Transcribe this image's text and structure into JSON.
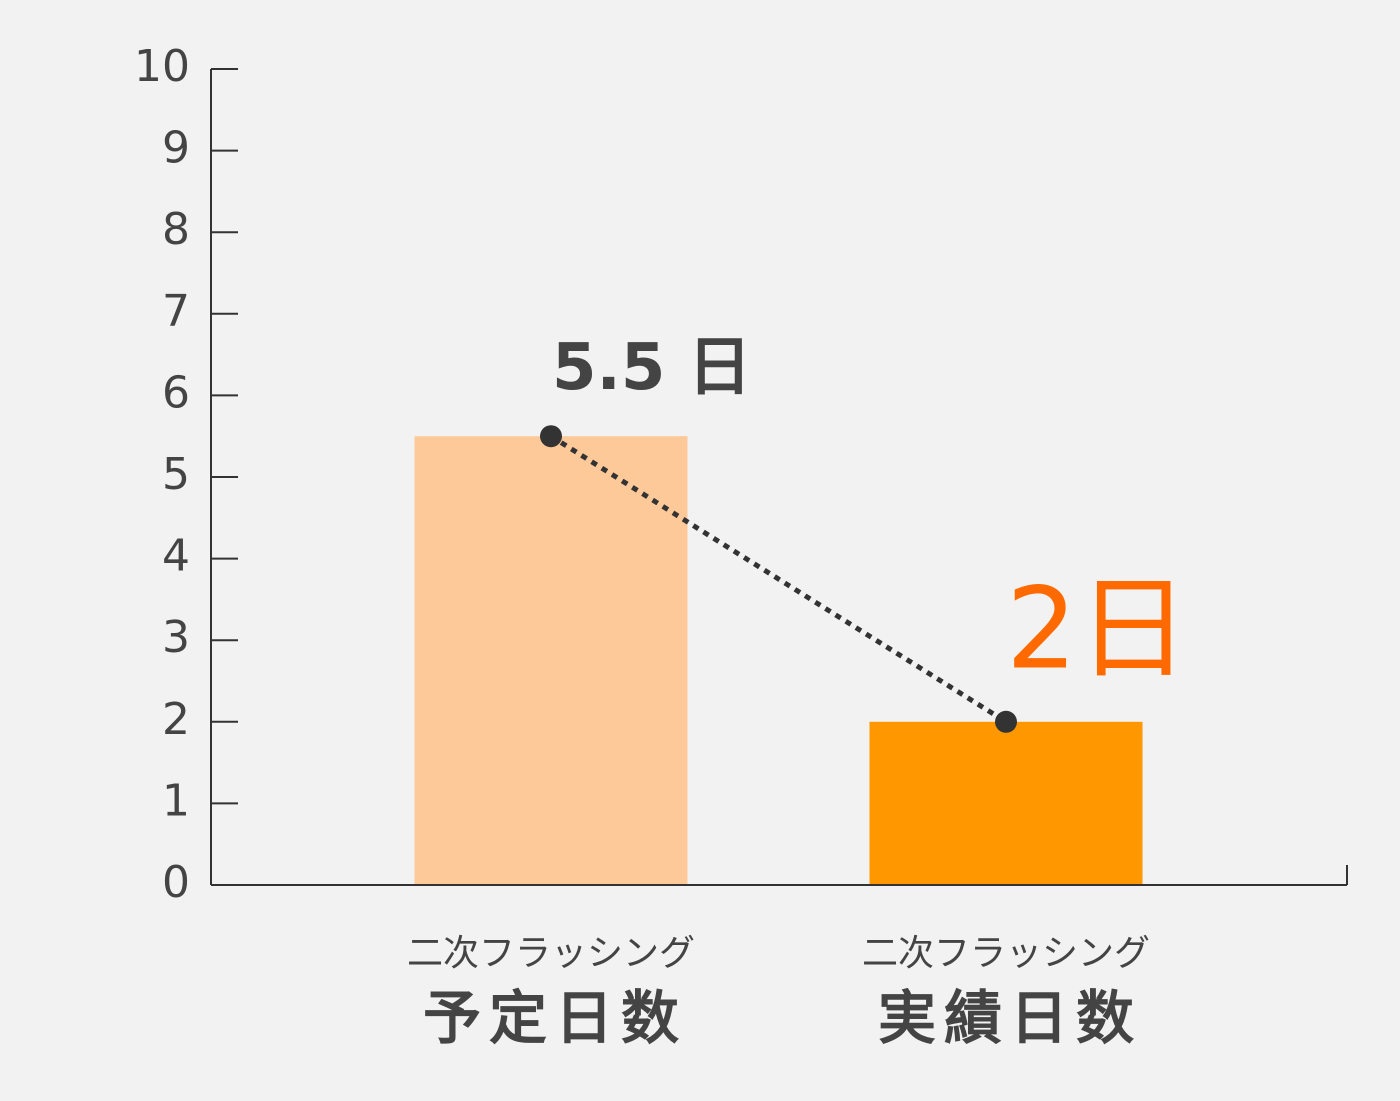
{
  "chart_data": {
    "type": "bar",
    "categories": [
      [
        "二次フラッシング",
        "予定日数"
      ],
      [
        "二次フラッシング",
        "実績日数"
      ]
    ],
    "values": [
      5.5,
      2
    ],
    "value_labels": [
      "5.5 日",
      "2日"
    ],
    "colors": [
      "#fec999",
      "#fe9700"
    ],
    "label_colors": [
      "#444444",
      "#fe6a00"
    ],
    "line_color": "#333333",
    "ylim": [
      0,
      10
    ],
    "yticks": [
      0,
      1,
      2,
      3,
      4,
      5,
      6,
      7,
      8,
      9,
      10
    ]
  }
}
